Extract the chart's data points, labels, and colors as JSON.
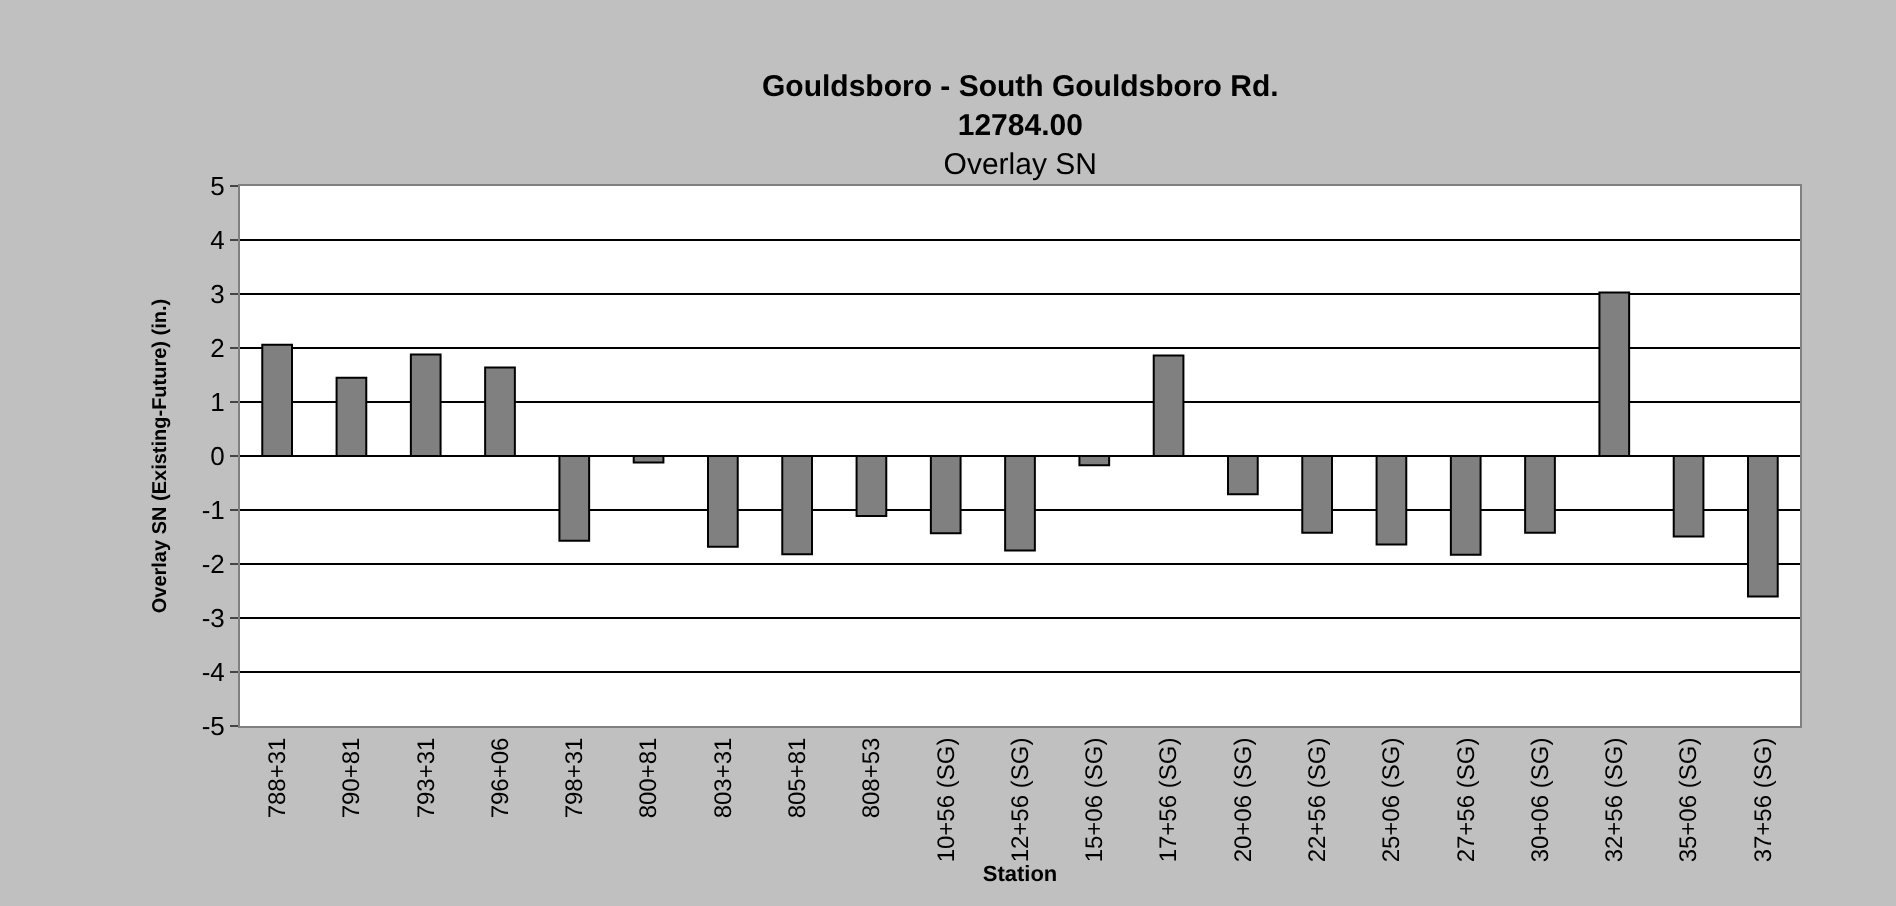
{
  "chart_data": {
    "type": "bar",
    "title": "Gouldsboro - South Gouldsboro Rd.\n12784.00",
    "subtitle": "Overlay SN",
    "xlabel": "Station",
    "ylabel": "Overlay SN (Existing-Future) (in.)",
    "categories": [
      "788+31",
      "790+81",
      "793+31",
      "796+06",
      "798+31",
      "800+81",
      "803+31",
      "805+81",
      "808+53",
      "10+56 (SG)",
      "12+56 (SG)",
      "15+06 (SG)",
      "17+56 (SG)",
      "20+06 (SG)",
      "22+56 (SG)",
      "25+06 (SG)",
      "27+56 (SG)",
      "30+06 (SG)",
      "32+56 (SG)",
      "35+06 (SG)",
      "37+56 (SG)"
    ],
    "values": [
      2.06,
      1.45,
      1.88,
      1.64,
      -1.57,
      -0.12,
      -1.68,
      -1.82,
      -1.11,
      -1.43,
      -1.75,
      -0.17,
      1.86,
      -0.71,
      -1.42,
      -1.64,
      -1.83,
      -1.42,
      3.03,
      -1.49,
      -2.6
    ],
    "color": "#808080",
    "ylim": [
      -5,
      5
    ],
    "yticks": [
      -5,
      -4,
      -3,
      -2,
      -1,
      0,
      1,
      2,
      3,
      4,
      5
    ],
    "grid": "y"
  }
}
